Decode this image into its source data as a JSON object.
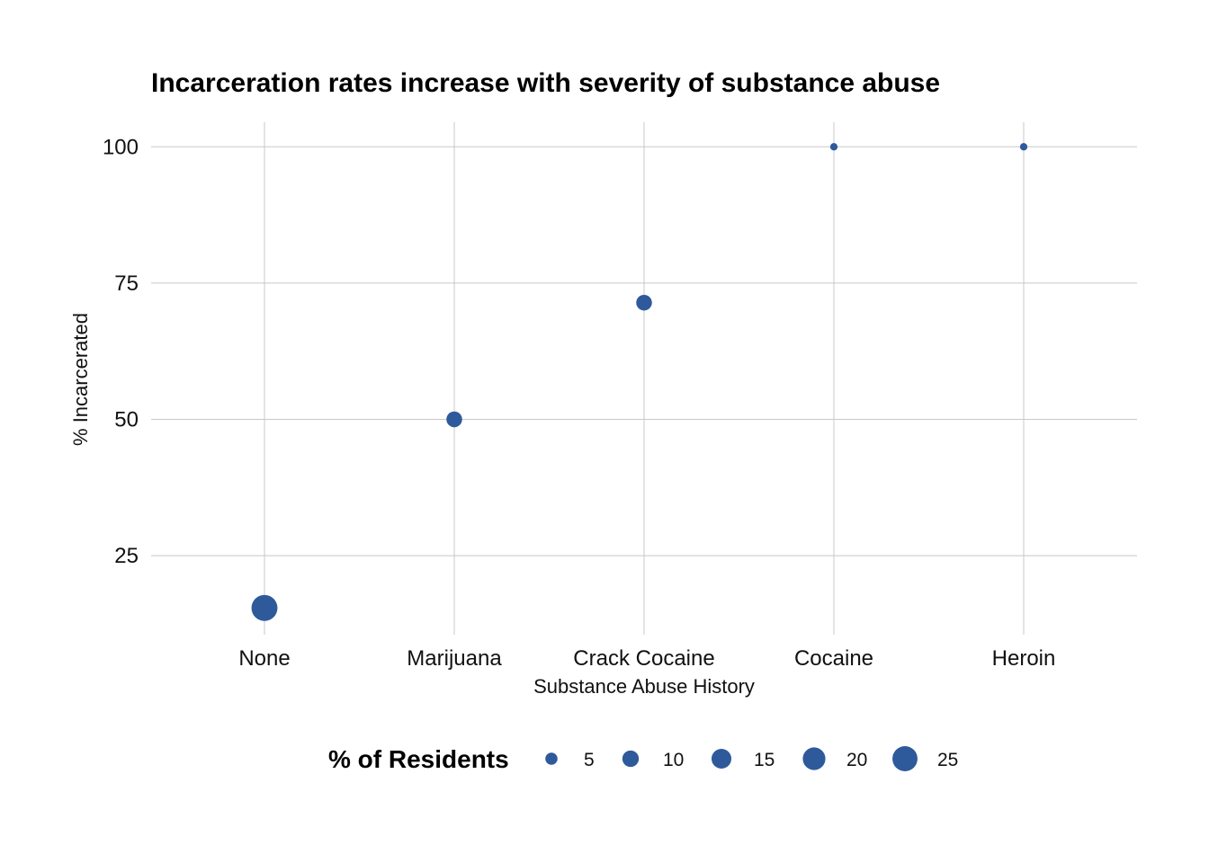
{
  "chart_data": {
    "type": "scatter",
    "title": "Incarceration rates increase with severity of substance abuse",
    "xlabel": "Substance Abuse History",
    "ylabel": "% Incarcerated",
    "categories": [
      "None",
      "Marijuana",
      "Crack Cocaine",
      "Cocaine",
      "Heroin"
    ],
    "yticks": [
      25,
      50,
      75,
      100
    ],
    "ylim": [
      10.5,
      104.5
    ],
    "grid": true,
    "point_color": "#2E5A9C",
    "points": [
      {
        "category": "None",
        "y": 15.4,
        "size": 27
      },
      {
        "category": "Marijuana",
        "y": 50,
        "size": 9
      },
      {
        "category": "Crack Cocaine",
        "y": 71.4,
        "size": 9
      },
      {
        "category": "Cocaine",
        "y": 100,
        "size": 1.5
      },
      {
        "category": "Heroin",
        "y": 100,
        "size": 1.5
      }
    ],
    "legend": {
      "title": "% of Residents",
      "placement": "bottom",
      "entries": [
        5,
        10,
        15,
        20,
        25
      ]
    }
  }
}
